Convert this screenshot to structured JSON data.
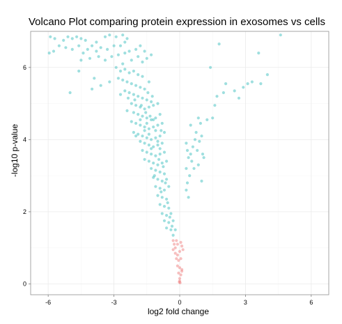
{
  "chart_data": {
    "type": "scatter",
    "title": "Volcano Plot comparing protein expression in exosomes vs cells",
    "xlabel": "log2 fold change",
    "ylabel": "-log10 p-value",
    "xlim": [
      -6.8,
      6.8
    ],
    "ylim": [
      -0.3,
      7.0
    ],
    "x_ticks": [
      -6,
      -3,
      0,
      3,
      6
    ],
    "x_tick_labels": [
      "-6",
      "-3",
      "0",
      "3",
      "6"
    ],
    "y_ticks": [
      0,
      2,
      4,
      6
    ],
    "y_tick_labels": [
      "0",
      "2",
      "4",
      "6"
    ],
    "grid": true,
    "legend": "none",
    "series": [
      {
        "color": "#3fbfbf",
        "points": [
          [
            -5.9,
            6.85
          ],
          [
            -5.7,
            6.8
          ],
          [
            -5.5,
            6.6
          ],
          [
            -5.95,
            6.4
          ],
          [
            -5.75,
            6.45
          ],
          [
            -5.1,
            6.85
          ],
          [
            -4.9,
            6.8
          ],
          [
            -4.7,
            6.85
          ],
          [
            -4.5,
            6.8
          ],
          [
            -4.3,
            6.75
          ],
          [
            -4.6,
            6.6
          ],
          [
            -4.9,
            6.5
          ],
          [
            -5.2,
            6.55
          ],
          [
            -4.4,
            6.4
          ],
          [
            -4.2,
            6.5
          ],
          [
            -4.0,
            6.6
          ],
          [
            -3.8,
            6.7
          ],
          [
            -3.4,
            6.85
          ],
          [
            -3.2,
            6.9
          ],
          [
            -2.9,
            6.85
          ],
          [
            -2.6,
            6.9
          ],
          [
            -2.4,
            6.8
          ],
          [
            -3.6,
            6.55
          ],
          [
            -3.3,
            6.5
          ],
          [
            -3.0,
            6.6
          ],
          [
            -2.7,
            6.6
          ],
          [
            -2.5,
            6.7
          ],
          [
            -4.5,
            6.2
          ],
          [
            -4.1,
            6.25
          ],
          [
            -3.7,
            6.3
          ],
          [
            -3.4,
            6.2
          ],
          [
            -3.1,
            6.3
          ],
          [
            -2.8,
            6.35
          ],
          [
            -2.5,
            6.4
          ],
          [
            -2.3,
            6.45
          ],
          [
            -2.0,
            6.5
          ],
          [
            -1.8,
            6.6
          ],
          [
            -1.6,
            6.45
          ],
          [
            -1.9,
            6.3
          ],
          [
            -2.2,
            6.2
          ],
          [
            -1.7,
            6.15
          ],
          [
            -1.5,
            6.25
          ],
          [
            -1.3,
            6.35
          ],
          [
            -4.6,
            5.9
          ],
          [
            -3.9,
            5.7
          ],
          [
            -3.6,
            5.5
          ],
          [
            -4.0,
            5.4
          ],
          [
            -3.2,
            5.6
          ],
          [
            -5.0,
            5.3
          ],
          [
            -2.9,
            6.0
          ],
          [
            -2.7,
            5.9
          ],
          [
            -2.5,
            5.95
          ],
          [
            -2.3,
            5.85
          ],
          [
            -2.1,
            5.9
          ],
          [
            -1.9,
            5.8
          ],
          [
            -1.7,
            5.75
          ],
          [
            -2.8,
            5.7
          ],
          [
            -2.6,
            5.65
          ],
          [
            -2.4,
            5.6
          ],
          [
            -2.2,
            5.55
          ],
          [
            -2.0,
            5.5
          ],
          [
            -1.8,
            5.45
          ],
          [
            -1.6,
            5.4
          ],
          [
            -2.5,
            5.35
          ],
          [
            -2.3,
            5.3
          ],
          [
            -2.1,
            5.25
          ],
          [
            -1.9,
            5.2
          ],
          [
            -1.7,
            5.15
          ],
          [
            -1.5,
            5.1
          ],
          [
            -1.3,
            5.05
          ],
          [
            -2.7,
            5.25
          ],
          [
            -2.2,
            5.0
          ],
          [
            -2.0,
            4.95
          ],
          [
            -1.8,
            4.9
          ],
          [
            -1.6,
            4.85
          ],
          [
            -1.4,
            4.9
          ],
          [
            -1.2,
            4.95
          ],
          [
            -1.0,
            5.0
          ],
          [
            -2.4,
            4.8
          ],
          [
            -2.1,
            4.75
          ],
          [
            -1.9,
            4.7
          ],
          [
            -1.7,
            4.65
          ],
          [
            -1.5,
            4.6
          ],
          [
            -1.3,
            4.55
          ],
          [
            -1.1,
            4.6
          ],
          [
            -0.9,
            4.7
          ],
          [
            -2.2,
            4.5
          ],
          [
            -2.0,
            4.45
          ],
          [
            -1.8,
            4.4
          ],
          [
            -1.6,
            4.35
          ],
          [
            -1.4,
            4.3
          ],
          [
            -1.2,
            4.35
          ],
          [
            -1.0,
            4.4
          ],
          [
            -0.8,
            4.45
          ],
          [
            -2.1,
            4.2
          ],
          [
            -1.9,
            4.15
          ],
          [
            -1.7,
            4.1
          ],
          [
            -1.5,
            4.05
          ],
          [
            -1.3,
            4.0
          ],
          [
            -1.1,
            4.05
          ],
          [
            -0.9,
            4.1
          ],
          [
            -0.7,
            4.2
          ],
          [
            -1.8,
            3.95
          ],
          [
            -1.6,
            3.9
          ],
          [
            -1.4,
            3.85
          ],
          [
            -1.2,
            3.8
          ],
          [
            -1.0,
            3.85
          ],
          [
            -0.8,
            3.9
          ],
          [
            -1.7,
            3.7
          ],
          [
            -1.5,
            3.65
          ],
          [
            -1.3,
            3.6
          ],
          [
            -1.1,
            3.55
          ],
          [
            -0.9,
            3.6
          ],
          [
            -0.7,
            3.65
          ],
          [
            -1.6,
            3.45
          ],
          [
            -1.4,
            3.4
          ],
          [
            -1.2,
            3.35
          ],
          [
            -1.0,
            3.3
          ],
          [
            -0.8,
            3.35
          ],
          [
            -0.6,
            3.4
          ],
          [
            -1.3,
            3.2
          ],
          [
            -1.1,
            3.15
          ],
          [
            -0.9,
            3.1
          ],
          [
            -0.7,
            3.05
          ],
          [
            -1.2,
            2.95
          ],
          [
            -1.0,
            2.9
          ],
          [
            -0.8,
            2.85
          ],
          [
            -0.6,
            2.9
          ],
          [
            -1.1,
            2.7
          ],
          [
            -0.9,
            2.65
          ],
          [
            -0.7,
            2.6
          ],
          [
            -0.5,
            2.7
          ],
          [
            -1.0,
            2.45
          ],
          [
            -0.8,
            2.4
          ],
          [
            -0.6,
            2.35
          ],
          [
            -0.9,
            2.2
          ],
          [
            -0.7,
            2.15
          ],
          [
            -0.5,
            2.1
          ],
          [
            -0.8,
            1.95
          ],
          [
            -0.6,
            1.9
          ],
          [
            -0.4,
            1.95
          ],
          [
            -0.7,
            1.75
          ],
          [
            -0.5,
            1.7
          ],
          [
            -0.3,
            1.75
          ],
          [
            -0.6,
            1.55
          ],
          [
            -0.4,
            1.5
          ],
          [
            -0.2,
            1.5
          ],
          [
            -0.3,
            1.35
          ],
          [
            -1.5,
            4.45
          ],
          [
            -1.4,
            4.15
          ],
          [
            -1.2,
            4.55
          ],
          [
            -1.0,
            3.95
          ],
          [
            -0.9,
            3.75
          ],
          [
            -1.6,
            4.25
          ],
          [
            -1.8,
            4.55
          ],
          [
            -2.0,
            4.1
          ],
          [
            -1.3,
            3.75
          ],
          [
            -1.1,
            4.25
          ],
          [
            -0.85,
            4.25
          ],
          [
            -1.35,
            4.65
          ],
          [
            -1.55,
            4.75
          ],
          [
            -1.75,
            4.95
          ],
          [
            -2.05,
            5.1
          ],
          [
            -2.35,
            5.15
          ],
          [
            -1.45,
            5.3
          ],
          [
            -1.25,
            5.2
          ],
          [
            -0.95,
            3.45
          ],
          [
            -0.75,
            3.25
          ],
          [
            -1.15,
            3.0
          ],
          [
            -0.85,
            2.55
          ],
          [
            -0.65,
            2.8
          ],
          [
            -0.55,
            2.25
          ],
          [
            -0.45,
            1.85
          ],
          [
            -0.35,
            1.6
          ],
          [
            -2.6,
            6.1
          ],
          [
            -1.4,
            5.6
          ],
          [
            -3.8,
            6.45
          ],
          [
            -5.3,
            6.75
          ],
          [
            0.3,
            3.9
          ],
          [
            0.35,
            3.7
          ],
          [
            0.4,
            3.5
          ],
          [
            0.3,
            3.2
          ],
          [
            0.5,
            3.6
          ],
          [
            0.6,
            3.8
          ],
          [
            0.45,
            3.0
          ],
          [
            0.35,
            2.8
          ],
          [
            0.55,
            3.4
          ],
          [
            0.7,
            4.0
          ],
          [
            0.75,
            4.2
          ],
          [
            0.8,
            3.7
          ],
          [
            0.9,
            3.95
          ],
          [
            1.0,
            4.1
          ],
          [
            1.1,
            3.5
          ],
          [
            0.65,
            3.2
          ],
          [
            0.85,
            3.3
          ],
          [
            1.05,
            3.6
          ],
          [
            0.3,
            2.6
          ],
          [
            0.4,
            2.4
          ],
          [
            0.5,
            4.4
          ],
          [
            0.95,
            4.45
          ],
          [
            1.0,
            2.85
          ],
          [
            0.85,
            4.6
          ],
          [
            1.25,
            4.55
          ],
          [
            1.4,
            6.0
          ],
          [
            1.8,
            6.65
          ],
          [
            2.0,
            5.3
          ],
          [
            2.1,
            5.55
          ],
          [
            2.5,
            5.35
          ],
          [
            2.7,
            5.15
          ],
          [
            2.9,
            5.45
          ],
          [
            3.1,
            5.55
          ],
          [
            3.3,
            5.6
          ],
          [
            3.6,
            6.4
          ],
          [
            3.7,
            5.55
          ],
          [
            4.0,
            5.8
          ],
          [
            4.6,
            6.9
          ],
          [
            1.6,
            4.95
          ],
          [
            1.5,
            4.6
          ],
          [
            1.7,
            5.2
          ]
        ]
      },
      {
        "color": "#f08080",
        "points": [
          [
            -0.3,
            1.2
          ],
          [
            -0.25,
            1.1
          ],
          [
            -0.2,
            1.0
          ],
          [
            -0.15,
            1.2
          ],
          [
            -0.1,
            1.1
          ],
          [
            0.05,
            1.15
          ],
          [
            0.1,
            1.05
          ],
          [
            -0.2,
            0.85
          ],
          [
            -0.1,
            0.8
          ],
          [
            0.0,
            0.9
          ],
          [
            -0.15,
            0.7
          ],
          [
            -0.05,
            0.65
          ],
          [
            0.05,
            0.7
          ],
          [
            -0.1,
            0.5
          ],
          [
            0.0,
            0.45
          ],
          [
            0.1,
            0.4
          ],
          [
            -0.05,
            0.3
          ],
          [
            0.05,
            0.25
          ],
          [
            0.0,
            0.15
          ],
          [
            0.0,
            0.08
          ],
          [
            0.02,
            0.03
          ],
          [
            -0.02,
            0.05
          ],
          [
            0.1,
            0.35
          ],
          [
            -0.3,
            0.95
          ],
          [
            0.15,
            0.95
          ]
        ]
      }
    ]
  }
}
